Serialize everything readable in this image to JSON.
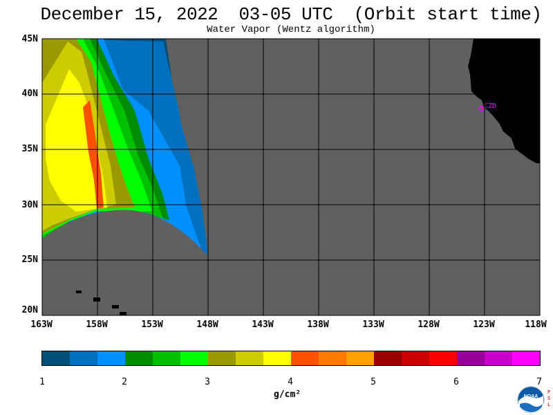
{
  "header": {
    "title": "December 15, 2022  03-05 UTC  (Orbit start time)",
    "subtitle": "Water Vapor (Wentz algorithm)"
  },
  "map": {
    "lat_labels": [
      "45N",
      "40N",
      "35N",
      "30N",
      "25N",
      "20N"
    ],
    "lon_labels": [
      "163W",
      "158W",
      "153W",
      "148W",
      "143W",
      "138W",
      "133W",
      "128W",
      "123W",
      "118W"
    ],
    "station_label": "CZD",
    "colors": {
      "no_data": "#606060",
      "land": "#000000",
      "station": "#ff00ff",
      "grid": "#000000"
    }
  },
  "legend": {
    "tick_labels": [
      "1",
      "2",
      "3",
      "4",
      "5",
      "6",
      "7"
    ],
    "unit_label": "g/cm²",
    "colors": [
      "#00507a",
      "#0070bf",
      "#0090ff",
      "#008c00",
      "#00c000",
      "#00ff00",
      "#9a9a00",
      "#cccc00",
      "#ffff00",
      "#ff5000",
      "#ff7800",
      "#ffa000",
      "#9a0000",
      "#cc0000",
      "#ff0000",
      "#9a009a",
      "#cc00cc",
      "#ff00ff"
    ]
  },
  "logo": {
    "text": "NOAA",
    "side_text": "PSL",
    "icon": "noaa-logo-icon"
  }
}
